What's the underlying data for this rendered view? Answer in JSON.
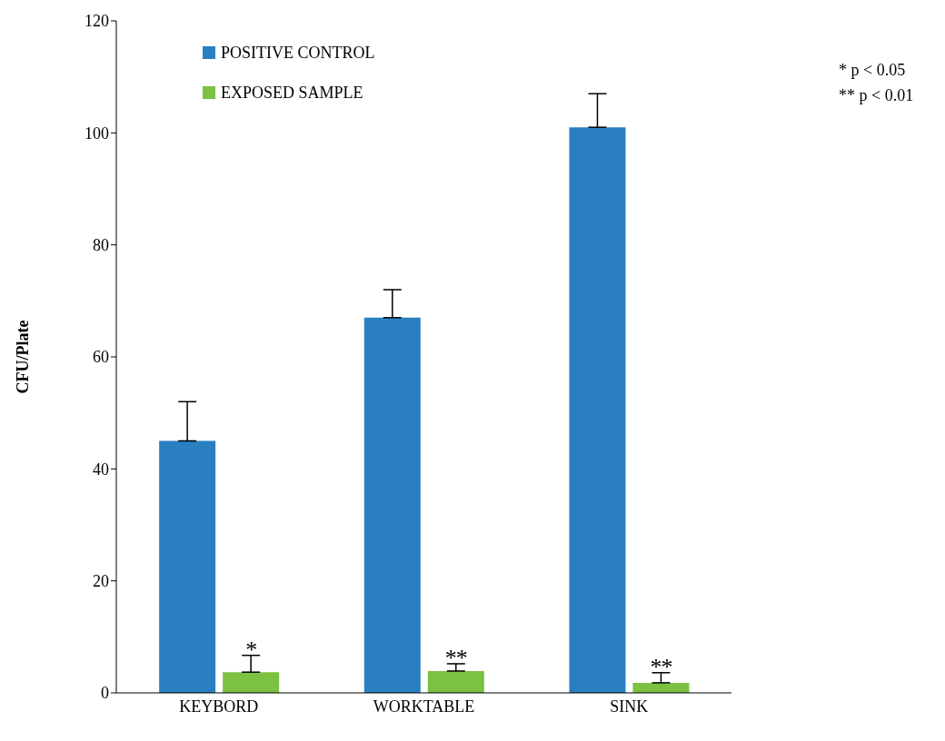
{
  "chart_data": {
    "type": "bar",
    "ylabel": "CFU/Plate",
    "categories": [
      "KEYBORD",
      "WORKTABLE",
      "SINK"
    ],
    "series": [
      {
        "name": "POSITIVE CONTROL",
        "color": "#2a7fc1",
        "values": [
          45,
          67,
          101
        ],
        "errors": [
          [
            45,
            52
          ],
          [
            67,
            72
          ],
          [
            101,
            107
          ]
        ]
      },
      {
        "name": "EXPOSED SAMPLE",
        "color": "#7cc142",
        "values": [
          3.7,
          3.9,
          1.8
        ],
        "errors": [
          [
            3.7,
            6.7
          ],
          [
            3.9,
            5.2
          ],
          [
            1.8,
            3.6
          ]
        ]
      }
    ],
    "ylim": [
      0,
      120
    ],
    "yticks": [
      0,
      20,
      40,
      60,
      80,
      100,
      120
    ],
    "grid": false,
    "legend": "top left",
    "annotations": [
      {
        "text": "*",
        "x": "KEYBORD",
        "y": 6.7
      },
      {
        "text": "**",
        "x": "WORKTABLE",
        "y": 5.2
      },
      {
        "text": "**",
        "x": "SINK",
        "y": 3.6
      },
      "* p < 0.05",
      "** p < 0.01"
    ]
  }
}
